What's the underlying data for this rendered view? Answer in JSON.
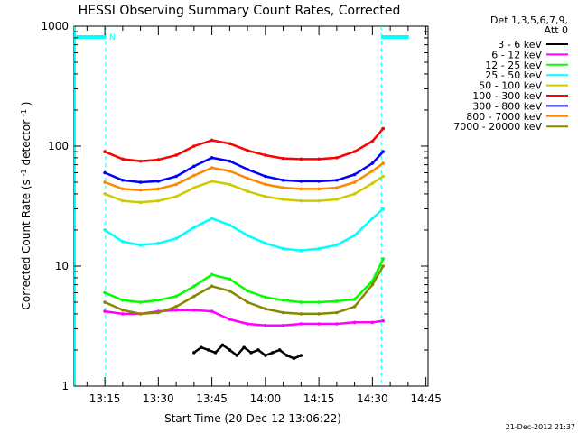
{
  "chart_data": {
    "type": "line",
    "title": "HESSI Observing Summary Count Rates, Corrected",
    "xlabel": "Start Time (20-Dec-12 13:06:22)",
    "ylabel_main": "Corrected Count Rate (s",
    "ylabel_sup1": "-1",
    "ylabel_mid": " detector",
    "ylabel_sup2": "-1",
    "ylabel_end": ")",
    "y_scale": "log",
    "ylim": [
      1,
      1000
    ],
    "xlim_minutes_since_13_00": [
      9,
      46
    ],
    "x_ticks": [
      {
        "value": 15,
        "label": "13:15"
      },
      {
        "value": 30,
        "label": "13:30"
      },
      {
        "value": 45,
        "label": "13:45"
      },
      {
        "value": 60,
        "label": "14:00"
      },
      {
        "value": 75,
        "label": "14:15"
      },
      {
        "value": 90,
        "label": "14:30"
      },
      {
        "value": 105,
        "label": "14:45"
      }
    ],
    "y_ticks": [
      {
        "value": 1,
        "label": "1"
      },
      {
        "value": 10,
        "label": "10"
      },
      {
        "value": 100,
        "label": "100"
      },
      {
        "value": 1000,
        "label": "1000"
      }
    ],
    "legend_header": [
      "Det 1,3,5,6,7,9,",
      "Att 0"
    ],
    "legend_placement": "top-right, outside plot",
    "timestamp": "21-Dec-2012 21:37",
    "marker_label": "N",
    "marker_color": "#00ffff",
    "night_intervals": [
      [
        6.37,
        15.2
      ],
      [
        92.5,
        100.2
      ]
    ],
    "day_markers": [
      15.2,
      92.5
    ],
    "series": [
      {
        "name": "3 - 6 keV",
        "color": "#000000",
        "x": [
          40,
          42,
          44,
          46,
          48,
          50,
          52,
          54,
          56,
          58,
          60,
          62,
          64,
          66,
          68,
          70
        ],
        "y": [
          1.9,
          2.1,
          2.0,
          1.9,
          2.2,
          2.0,
          1.8,
          2.1,
          1.9,
          2.0,
          1.8,
          1.9,
          2.0,
          1.8,
          1.7,
          1.8
        ]
      },
      {
        "name": "6 - 12 keV",
        "color": "#ff00ff",
        "x": [
          15,
          20,
          25,
          30,
          35,
          40,
          45,
          50,
          55,
          60,
          65,
          70,
          75,
          80,
          85,
          90,
          93
        ],
        "y": [
          4.2,
          4.0,
          4.0,
          4.2,
          4.3,
          4.3,
          4.2,
          3.6,
          3.3,
          3.2,
          3.2,
          3.3,
          3.3,
          3.3,
          3.4,
          3.4,
          3.5
        ]
      },
      {
        "name": "12 - 25 keV",
        "color": "#00ff00",
        "x": [
          15,
          20,
          25,
          30,
          35,
          40,
          45,
          50,
          55,
          60,
          65,
          70,
          75,
          80,
          85,
          90,
          93
        ],
        "y": [
          6.0,
          5.2,
          5.0,
          5.2,
          5.6,
          6.8,
          8.5,
          7.8,
          6.2,
          5.5,
          5.2,
          5.0,
          5.0,
          5.1,
          5.3,
          7.5,
          11.5
        ]
      },
      {
        "name": "25 - 50 keV",
        "color": "#00ffff",
        "x": [
          15,
          20,
          25,
          30,
          35,
          40,
          45,
          50,
          55,
          60,
          65,
          70,
          75,
          80,
          85,
          90,
          93
        ],
        "y": [
          20,
          16,
          15,
          15.5,
          17,
          21,
          25,
          22,
          18,
          15.5,
          14,
          13.5,
          14,
          15,
          18,
          25,
          30
        ]
      },
      {
        "name": "50 - 100 keV",
        "color": "#cccc00",
        "x": [
          15,
          20,
          25,
          30,
          35,
          40,
          45,
          50,
          55,
          60,
          65,
          70,
          75,
          80,
          85,
          90,
          93
        ],
        "y": [
          40,
          35,
          34,
          35,
          38,
          45,
          51,
          48,
          42,
          38,
          36,
          35,
          35,
          36,
          40,
          49,
          56
        ]
      },
      {
        "name": "100 - 300 keV",
        "color": "#ff0000",
        "x": [
          15,
          20,
          25,
          30,
          35,
          40,
          45,
          50,
          55,
          60,
          65,
          70,
          75,
          80,
          85,
          90,
          93
        ],
        "y": [
          90,
          78,
          75,
          77,
          84,
          100,
          112,
          105,
          92,
          84,
          79,
          78,
          78,
          80,
          90,
          110,
          140
        ]
      },
      {
        "name": "300 - 800 keV",
        "color": "#0000ff",
        "x": [
          15,
          20,
          25,
          30,
          35,
          40,
          45,
          50,
          55,
          60,
          65,
          70,
          75,
          80,
          85,
          90,
          93
        ],
        "y": [
          60,
          52,
          50,
          51,
          56,
          68,
          80,
          75,
          64,
          56,
          52,
          51,
          51,
          52,
          58,
          72,
          90
        ]
      },
      {
        "name": "800 - 7000 keV",
        "color": "#ff8800",
        "x": [
          15,
          20,
          25,
          30,
          35,
          40,
          45,
          50,
          55,
          60,
          65,
          70,
          75,
          80,
          85,
          90,
          93
        ],
        "y": [
          50,
          44,
          43,
          44,
          48,
          57,
          66,
          62,
          54,
          48,
          45,
          44,
          44,
          45,
          50,
          62,
          72
        ]
      },
      {
        "name": "7000 - 20000 keV",
        "color": "#888800",
        "x": [
          15,
          20,
          25,
          30,
          35,
          40,
          45,
          50,
          55,
          60,
          65,
          70,
          75,
          80,
          85,
          90,
          93
        ],
        "y": [
          5.0,
          4.3,
          4.0,
          4.1,
          4.6,
          5.6,
          6.8,
          6.2,
          5.0,
          4.4,
          4.1,
          4.0,
          4.0,
          4.1,
          4.6,
          7.0,
          10.0
        ]
      }
    ]
  }
}
